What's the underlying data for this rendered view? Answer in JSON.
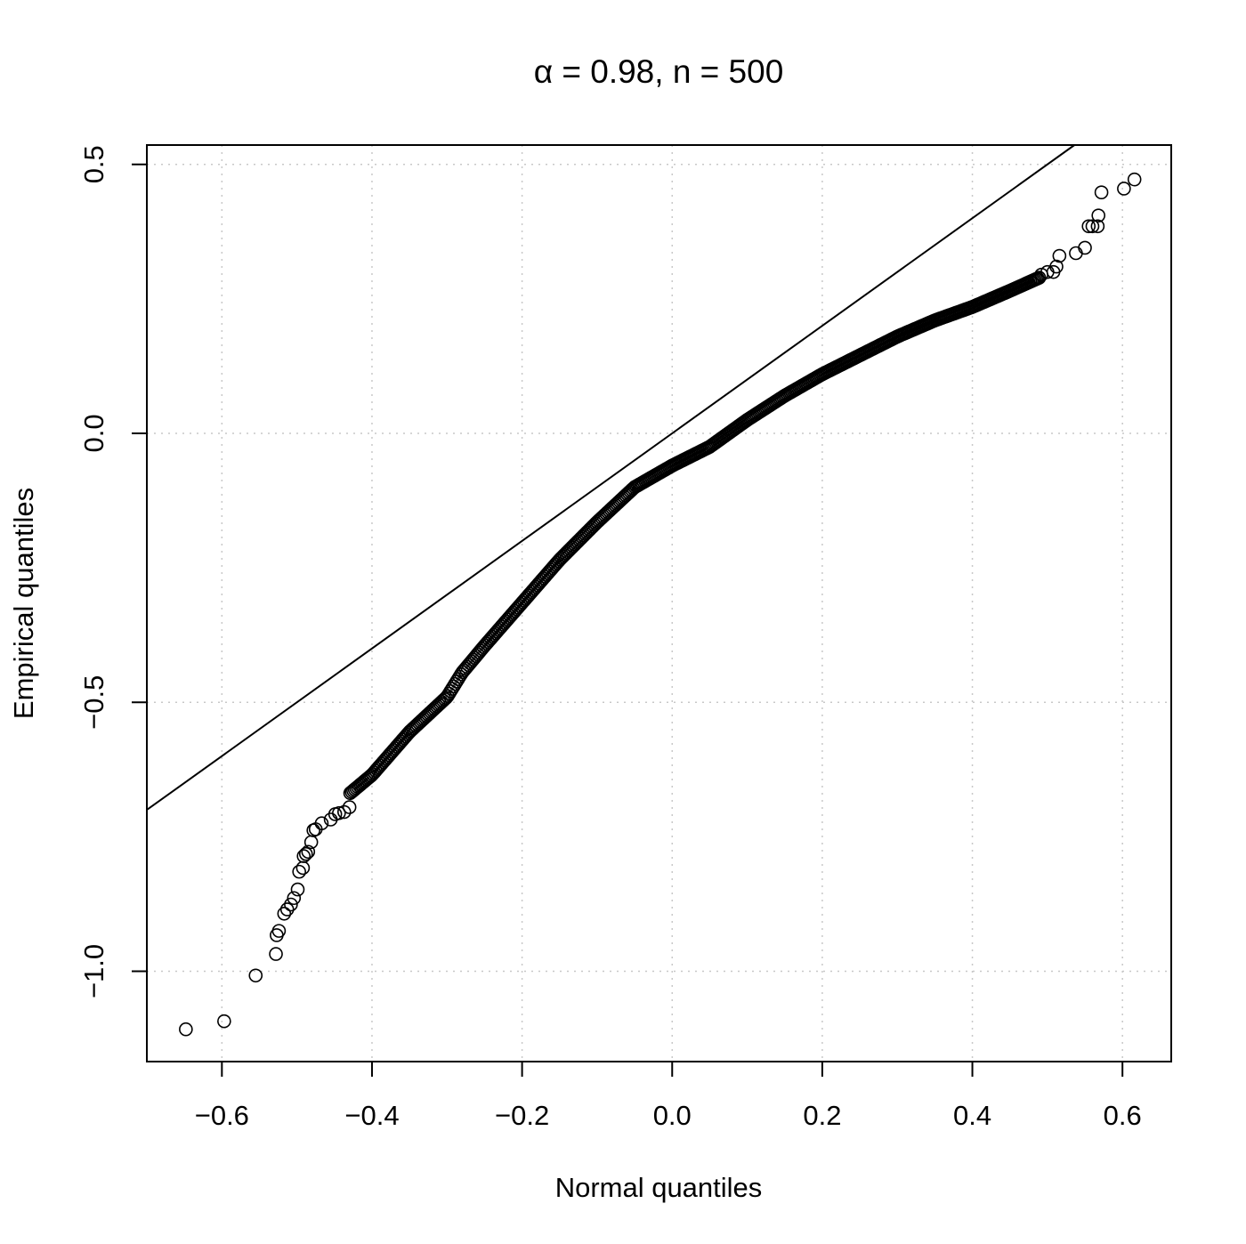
{
  "chart_data": {
    "type": "scatter",
    "title": "α = 0.98, n = 500",
    "xlabel": "Normal quantiles",
    "ylabel": "Empirical quantiles",
    "xlim": [
      -0.7,
      0.665
    ],
    "ylim": [
      -1.168,
      0.536
    ],
    "x_ticks": [
      -0.6,
      -0.4,
      -0.2,
      0.0,
      0.2,
      0.4,
      0.6
    ],
    "x_tick_labels": [
      "−0.6",
      "−0.4",
      "−0.2",
      "0.0",
      "0.2",
      "0.4",
      "0.6"
    ],
    "y_ticks": [
      -1.0,
      -0.5,
      0.0,
      0.5
    ],
    "y_tick_labels": [
      "−1.0",
      "−0.5",
      "0.0",
      "0.5"
    ],
    "grid": true,
    "marker": "open-circle",
    "color": "#000000",
    "n_points": 500,
    "reference_line": {
      "intercept": 0.0,
      "slope": 1.0
    },
    "quantile_curve": {
      "x": [
        -0.43,
        -0.4,
        -0.35,
        -0.3,
        -0.28,
        -0.25,
        -0.2,
        -0.15,
        -0.1,
        -0.05,
        0.0,
        0.05,
        0.1,
        0.15,
        0.2,
        0.25,
        0.3,
        0.35,
        0.4,
        0.45,
        0.49
      ],
      "y": [
        -0.67,
        -0.635,
        -0.555,
        -0.49,
        -0.445,
        -0.395,
        -0.315,
        -0.235,
        -0.165,
        -0.1,
        -0.06,
        -0.025,
        0.025,
        0.07,
        0.11,
        0.145,
        0.18,
        0.21,
        0.235,
        0.265,
        0.29
      ]
    },
    "tail_points": [
      {
        "x": -0.648,
        "y": -1.108
      },
      {
        "x": -0.597,
        "y": -1.093
      },
      {
        "x": -0.555,
        "y": -1.008
      },
      {
        "x": -0.528,
        "y": -0.968
      },
      {
        "x": -0.527,
        "y": -0.933
      },
      {
        "x": -0.524,
        "y": -0.925
      },
      {
        "x": -0.517,
        "y": -0.893
      },
      {
        "x": -0.513,
        "y": -0.885
      },
      {
        "x": -0.508,
        "y": -0.876
      },
      {
        "x": -0.504,
        "y": -0.864
      },
      {
        "x": -0.499,
        "y": -0.848
      },
      {
        "x": -0.497,
        "y": -0.815
      },
      {
        "x": -0.492,
        "y": -0.808
      },
      {
        "x": -0.491,
        "y": -0.786
      },
      {
        "x": -0.488,
        "y": -0.782
      },
      {
        "x": -0.485,
        "y": -0.778
      },
      {
        "x": -0.481,
        "y": -0.76
      },
      {
        "x": -0.478,
        "y": -0.738
      },
      {
        "x": -0.475,
        "y": -0.736
      },
      {
        "x": -0.467,
        "y": -0.725
      },
      {
        "x": -0.455,
        "y": -0.718
      },
      {
        "x": -0.449,
        "y": -0.708
      },
      {
        "x": -0.444,
        "y": -0.706
      },
      {
        "x": -0.437,
        "y": -0.704
      },
      {
        "x": -0.43,
        "y": -0.695
      },
      {
        "x": 0.492,
        "y": 0.295
      },
      {
        "x": 0.5,
        "y": 0.3
      },
      {
        "x": 0.508,
        "y": 0.3
      },
      {
        "x": 0.512,
        "y": 0.31
      },
      {
        "x": 0.516,
        "y": 0.33
      },
      {
        "x": 0.538,
        "y": 0.335
      },
      {
        "x": 0.55,
        "y": 0.345
      },
      {
        "x": 0.555,
        "y": 0.385
      },
      {
        "x": 0.56,
        "y": 0.385
      },
      {
        "x": 0.567,
        "y": 0.385
      },
      {
        "x": 0.568,
        "y": 0.405
      },
      {
        "x": 0.572,
        "y": 0.448
      },
      {
        "x": 0.602,
        "y": 0.455
      },
      {
        "x": 0.616,
        "y": 0.472
      }
    ]
  }
}
